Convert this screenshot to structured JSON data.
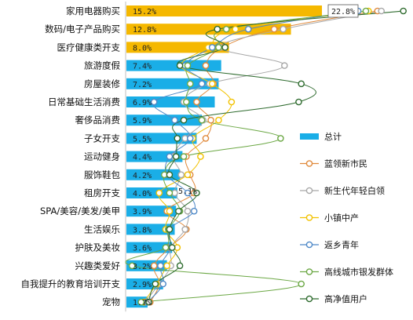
{
  "chart_data": {
    "type": "bar",
    "orientation": "horizontal",
    "categories": [
      "家用电器购买",
      "数码/电子产品购买",
      "医疗健康类开支",
      "旅游度假",
      "房屋装修",
      "日常基础生活消费",
      "奢侈品消费",
      "子女开支",
      "运动健身",
      "服饰鞋包",
      "租房开支",
      "SPA/美容/美发/美甲",
      "生活娱乐",
      "护肤及美妆",
      "兴趣类爱好",
      "自我提升的教育培训开支",
      "宠物"
    ],
    "bar_series": {
      "name": "总计",
      "color": "#1AAEE7",
      "highlight_color": "#F5B800",
      "values": [
        15.2,
        12.8,
        8.0,
        7.4,
        7.2,
        6.9,
        5.9,
        5.5,
        4.4,
        4.2,
        4.0,
        3.9,
        3.8,
        3.6,
        3.2,
        2.9,
        1.7
      ],
      "value_labels": [
        "15.2%",
        "12.8%",
        "8.0%",
        "7.4%",
        "7.2%",
        "6.9%",
        "5.9%",
        "5.5%",
        "4.4%",
        "4.2%",
        "4.0%",
        "3.9%",
        "3.8%",
        "3.6%",
        "3.2%",
        "2.9%",
        "1.7%"
      ],
      "highlighted": [
        true,
        true,
        true,
        false,
        false,
        false,
        false,
        false,
        false,
        false,
        false,
        false,
        false,
        false,
        false,
        false,
        false
      ]
    },
    "line_series": [
      {
        "name": "蓝领新市民",
        "color": "#E08A3C",
        "values": [
          19.5,
          11.5,
          7.5,
          6.2,
          6.8,
          5.5,
          6.6,
          6.2,
          4.7,
          5.0,
          5.3,
          3.2,
          4.7,
          3.4,
          2.2,
          2.6,
          1.9
        ]
      },
      {
        "name": "新生代年轻白领",
        "color": "#A8A8A8",
        "values": [
          19.8,
          12.2,
          7.3,
          12.3,
          6.5,
          4.5,
          6.0,
          4.6,
          3.7,
          4.3,
          3.8,
          4.8,
          4.6,
          3.5,
          3.5,
          2.6,
          1.5
        ]
      },
      {
        "name": "小镇中产",
        "color": "#F2C200",
        "values": [
          18.8,
          8.5,
          6.4,
          4.3,
          6.7,
          8.2,
          7.2,
          5.2,
          5.8,
          4.8,
          2.6,
          3.4,
          3.1,
          4.0,
          3.2,
          2.4,
          1.4
        ]
      },
      {
        "name": "返乡青年",
        "color": "#4E88C7",
        "values": [
          18.0,
          9.5,
          6.7,
          4.6,
          5.9,
          2.2,
          3.8,
          5.0,
          3.4,
          3.2,
          4.8,
          5.3,
          3.4,
          3.5,
          2.7,
          2.9,
          1.7
        ]
      },
      {
        "name": "高线城市银发群体",
        "color": "#6CA845",
        "values": [
          18.6,
          7.8,
          7.2,
          4.8,
          5.0,
          4.7,
          5.9,
          12.0,
          4.5,
          3.0,
          3.4,
          4.2,
          3.3,
          3.1,
          0.5,
          13.6,
          1.2
        ]
      },
      {
        "name": "高净值用户",
        "color": "#2E6B2E",
        "values": [
          21.5,
          7.1,
          7.7,
          4.2,
          13.6,
          13.4,
          4.5,
          4.0,
          3.9,
          3.4,
          5.5,
          4.1,
          3.4,
          3.6,
          4.2,
          2.3,
          1.8
        ]
      }
    ],
    "callouts": [
      {
        "category": "家用电器购买",
        "label": "22.8%",
        "boxed": true
      },
      {
        "category": "租房开支",
        "label": "5.1%",
        "boxed": false
      }
    ],
    "xlim": [
      0,
      24
    ],
    "grid": false,
    "legend_position": "right"
  }
}
